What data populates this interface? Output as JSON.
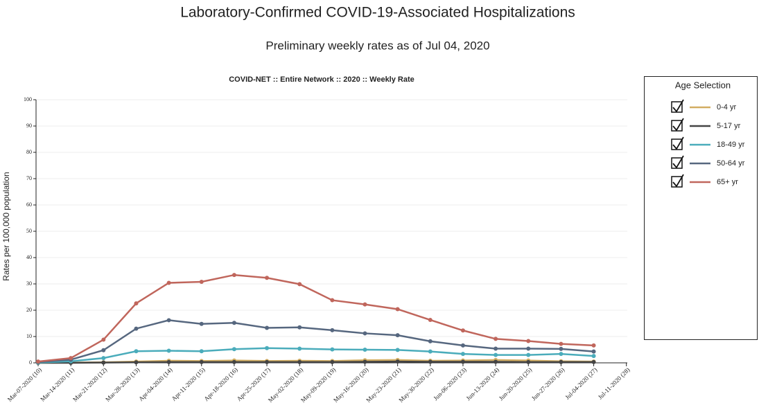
{
  "chart_data": {
    "type": "line",
    "title": "Laboratory-Confirmed COVID-19-Associated Hospitalizations",
    "subtitle": "Preliminary weekly rates as of Jul 04, 2020",
    "chart_title": "COVID-NET :: Entire Network :: 2020 :: Weekly Rate",
    "ylabel": "Rates per 100,000 population",
    "legend_title": "Age Selection",
    "legend": "right",
    "grid": true,
    "ylim": [
      0,
      100
    ],
    "yticks": [
      0,
      10,
      20,
      30,
      40,
      50,
      60,
      70,
      80,
      90,
      100
    ],
    "categories": [
      "Mar-07-2020 (10)",
      "Mar-14-2020 (11)",
      "Mar-21-2020 (12)",
      "Mar-28-2020 (13)",
      "Apr-04-2020 (14)",
      "Apr-11-2020 (15)",
      "Apr-18-2020 (16)",
      "Apr-25-2020 (17)",
      "May-02-2020 (18)",
      "May-09-2020 (19)",
      "May-16-2020 (20)",
      "May-23-2020 (21)",
      "May-30-2020 (22)",
      "Jun-06-2020 (23)",
      "Jun-13-2020 (24)",
      "Jun-20-2020 (25)",
      "Jun-27-2020 (26)",
      "Jul-04-2020 (27)",
      "Jul-11-2020 (28)"
    ],
    "series": [
      {
        "name": "0-4 yr",
        "color": "#d2ad62",
        "values": [
          0.0,
          0.1,
          0.2,
          0.5,
          0.8,
          0.7,
          0.9,
          0.7,
          0.8,
          0.7,
          1.0,
          1.1,
          0.8,
          0.9,
          1.1,
          0.9,
          0.6,
          0.5,
          null
        ]
      },
      {
        "name": "5-17 yr",
        "color": "#444444",
        "values": [
          0.0,
          0.0,
          0.1,
          0.2,
          0.3,
          0.3,
          0.3,
          0.3,
          0.3,
          0.3,
          0.4,
          0.5,
          0.4,
          0.4,
          0.4,
          0.3,
          0.3,
          0.3,
          null
        ]
      },
      {
        "name": "18-49 yr",
        "color": "#4aacbb",
        "values": [
          0.1,
          0.6,
          1.8,
          4.4,
          4.6,
          4.4,
          5.2,
          5.6,
          5.4,
          5.1,
          5.0,
          4.9,
          4.3,
          3.4,
          3.0,
          3.0,
          3.4,
          2.6,
          null
        ]
      },
      {
        "name": "50-64 yr",
        "color": "#56677f",
        "values": [
          0.3,
          1.2,
          4.8,
          13.0,
          16.2,
          14.8,
          15.2,
          13.3,
          13.5,
          12.4,
          11.2,
          10.5,
          8.2,
          6.6,
          5.4,
          5.4,
          5.3,
          4.3,
          null
        ]
      },
      {
        "name": "65+ yr",
        "color": "#c0665c",
        "values": [
          0.5,
          1.8,
          8.8,
          22.6,
          30.4,
          30.8,
          33.4,
          32.3,
          29.9,
          23.8,
          22.2,
          20.4,
          16.3,
          12.3,
          9.1,
          8.3,
          7.2,
          6.6,
          null
        ]
      }
    ]
  }
}
